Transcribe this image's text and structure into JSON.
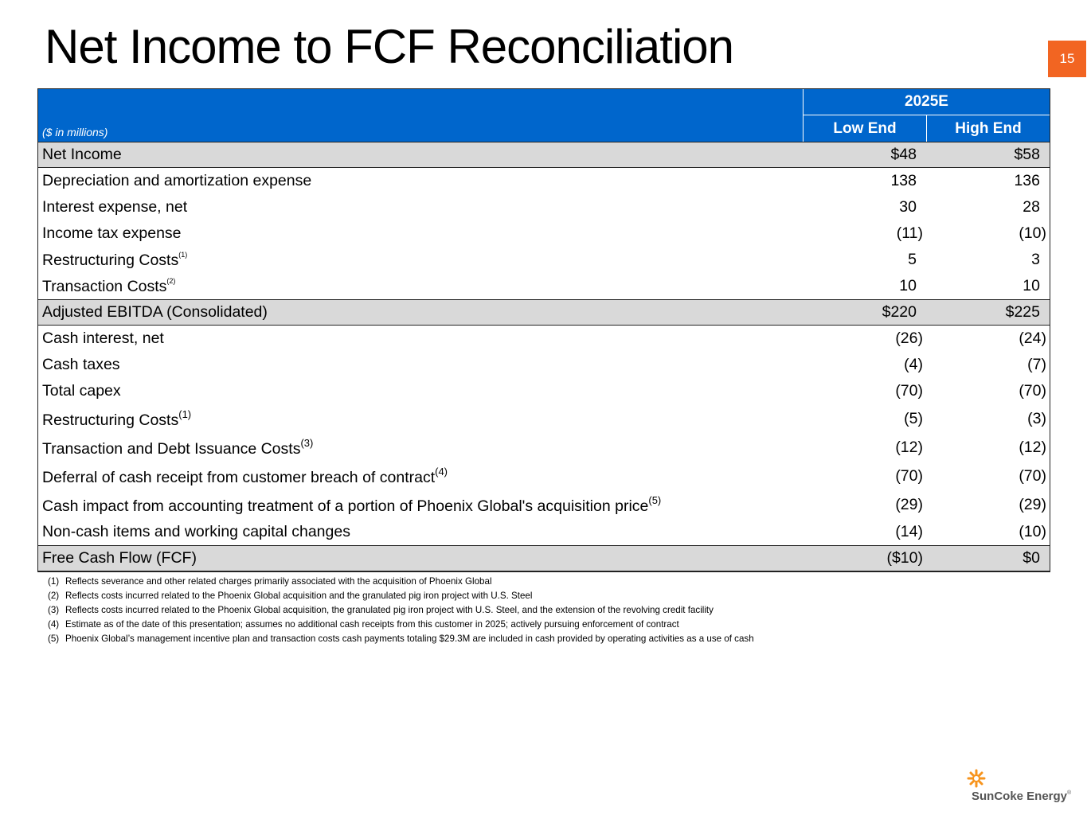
{
  "header": {
    "title": "Net Income to FCF Reconciliation",
    "page_number": "15"
  },
  "table": {
    "unit_note": "($ in millions)",
    "period": "2025E",
    "columns": [
      "Low End",
      "High End"
    ],
    "rows": [
      {
        "label": "Net Income",
        "low": "$48",
        "high": "$58"
      },
      {
        "label": "Depreciation and amortization expense",
        "low": "138",
        "high": "136"
      },
      {
        "label": "Interest expense, net",
        "low": "30",
        "high": "28"
      },
      {
        "label": "Income tax expense",
        "low": "(11)",
        "high": "(10)"
      },
      {
        "label": "Restructuring Costs",
        "note": "(1)",
        "low": "5",
        "high": "3"
      },
      {
        "label": "Transaction Costs",
        "note": "(2)",
        "low": "10",
        "high": "10"
      },
      {
        "label": "Adjusted EBITDA (Consolidated)",
        "low": "$220",
        "high": "$225"
      },
      {
        "label": "Cash interest, net",
        "low": "(26)",
        "high": "(24)"
      },
      {
        "label": "Cash taxes",
        "low": "(4)",
        "high": "(7)"
      },
      {
        "label": "Total capex",
        "low": "(70)",
        "high": "(70)"
      },
      {
        "label": "Restructuring Costs",
        "note": "(1)",
        "low": "(5)",
        "high": "(3)"
      },
      {
        "label": "Transaction and Debt Issuance Costs",
        "note": "(3)",
        "low": "(12)",
        "high": "(12)"
      },
      {
        "label": "Deferral of cash receipt from customer breach of contract",
        "note": "(4)",
        "low": "(70)",
        "high": "(70)"
      },
      {
        "label": "Cash impact from accounting treatment of a portion of Phoenix Global's acquisition price",
        "note": "(5)",
        "low": "(29)",
        "high": "(29)"
      },
      {
        "label": "Non-cash items and working capital changes",
        "low": "(14)",
        "high": "(10)"
      },
      {
        "label": "Free Cash Flow (FCF)",
        "low": "($10)",
        "high": "$0"
      }
    ]
  },
  "footnotes": [
    {
      "marker": "(1)",
      "text": "Reflects severance and other related charges primarily associated with the acquisition of Phoenix Global"
    },
    {
      "marker": "(2)",
      "text": "Reflects costs incurred related to the Phoenix Global acquisition and the granulated pig iron project with U.S. Steel"
    },
    {
      "marker": "(3)",
      "text": "Reflects costs incurred related to the Phoenix Global acquisition, the granulated pig iron project with U.S. Steel, and the extension of the revolving credit facility"
    },
    {
      "marker": "(4)",
      "text": "Estimate as of the date of this presentation; assumes no additional cash receipts from this customer in 2025; actively pursuing enforcement of contract"
    },
    {
      "marker": "(5)",
      "text": "Phoenix Global’s management incentive plan and transaction costs cash payments totaling $29.3M are included in cash provided by operating activities as a use of cash"
    }
  ],
  "logo": {
    "name": "SunCoke Energy",
    "mark": "®"
  }
}
